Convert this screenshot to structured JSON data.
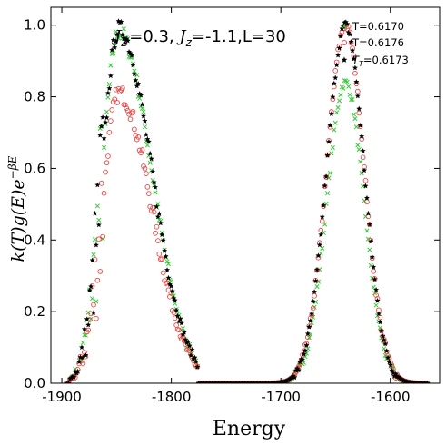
{
  "chart_data": {
    "type": "scatter",
    "title": "",
    "annotation": "J_{z'}=0.3, J_z=-1.1,L=30",
    "annotation_parts": {
      "p1_main": "J",
      "p1_sub": "z′",
      "p1_val": "=0.3, ",
      "p2_main": "J",
      "p2_sub": "z",
      "p2_val": "=-1.1,L=30"
    },
    "xlabel": "Energy",
    "ylabel": "k(T)g(E)e^{-βE}",
    "ylabel_parts": {
      "main": "k(T)g(E)e",
      "sup": "−βE"
    },
    "xlim": [
      -1910,
      -1555
    ],
    "ylim": [
      0.0,
      1.05
    ],
    "xticks": [
      "-1900",
      "-1800",
      "-1700",
      "-1600"
    ],
    "xtick_values": [
      -1900,
      -1800,
      -1700,
      -1600
    ],
    "yticks": [
      "0.0",
      "0.2",
      "0.4",
      "0.6",
      "0.8",
      "1.0"
    ],
    "ytick_values": [
      0.0,
      0.2,
      0.4,
      0.6,
      0.8,
      1.0
    ],
    "grid": false,
    "legend_position": "top-right",
    "series": [
      {
        "name": "T=0.6170",
        "legend_label": "T=0.6170",
        "marker": "x",
        "color": "#33cc33",
        "components": [
          {
            "center": -1848,
            "amplitude": 0.98,
            "width_left": 15,
            "width_right": 30,
            "start": -1893,
            "end": -1775
          },
          {
            "center": -1641,
            "amplitude": 0.84,
            "width_left": 17,
            "width_right": 17,
            "start": -1710,
            "end": -1570
          }
        ]
      },
      {
        "name": "T=0.6176",
        "legend_label": "T=0.6176",
        "marker": "o",
        "color": "#ee4444",
        "components": [
          {
            "center": -1848,
            "amplitude": 0.81,
            "width_left": 15,
            "width_right": 30,
            "start": -1893,
            "end": -1775
          },
          {
            "center": -1641,
            "amplitude": 1.0,
            "width_left": 17,
            "width_right": 17,
            "start": -1710,
            "end": -1570
          }
        ]
      },
      {
        "name": "T_T=0.6173",
        "legend_label_main": "T",
        "legend_label_sub": "T",
        "legend_label_val": "=0.6173",
        "marker": "*",
        "color": "#000000",
        "components": [
          {
            "center": -1848,
            "amplitude": 0.99,
            "width_left": 15,
            "width_right": 30,
            "start": -1893,
            "end": -1775
          },
          {
            "center": -1641,
            "amplitude": 1.0,
            "width_left": 17,
            "width_right": 17,
            "start": -1710,
            "end": -1570
          }
        ]
      }
    ]
  }
}
